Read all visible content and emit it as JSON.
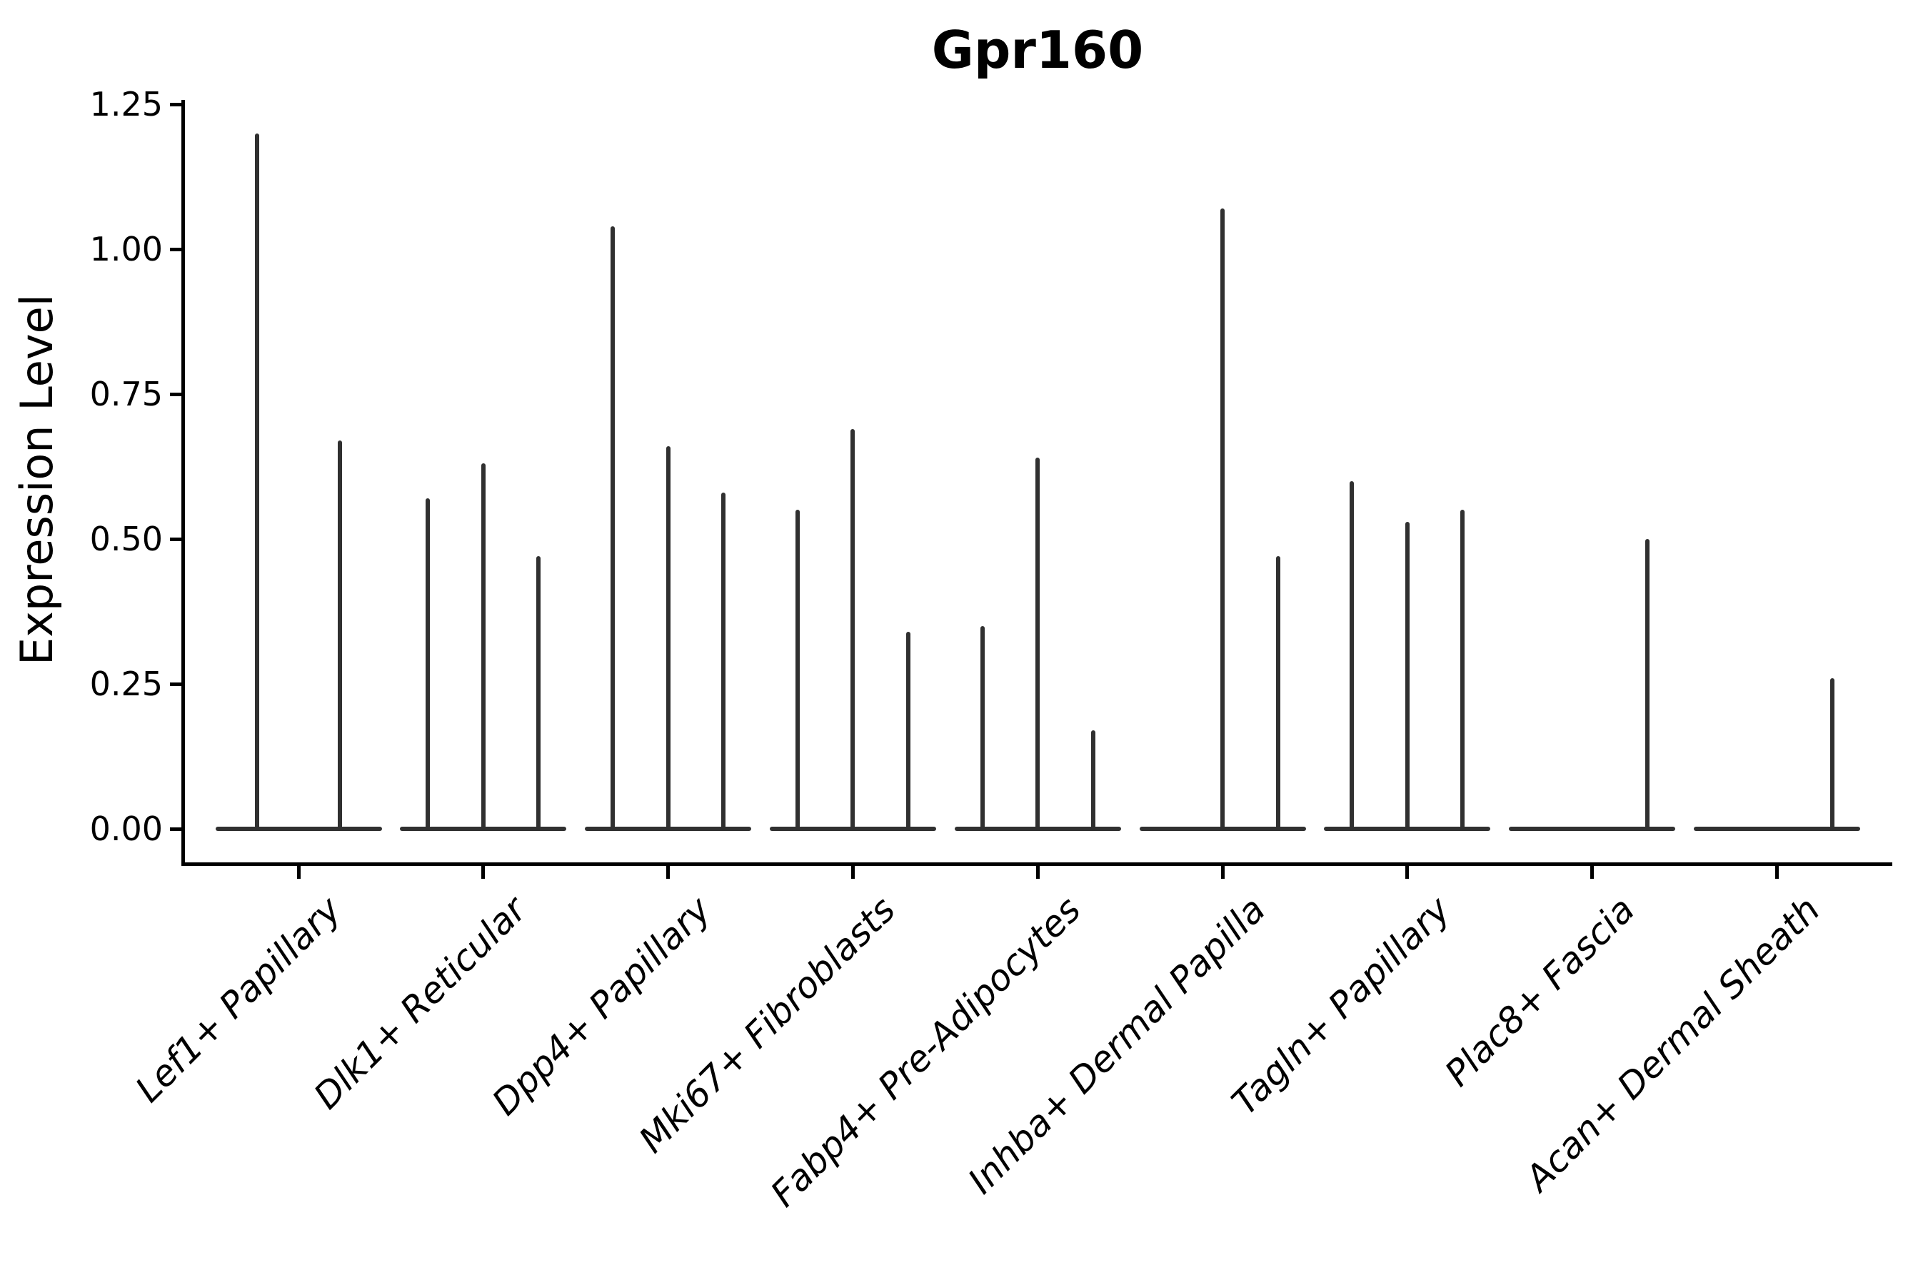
{
  "figure": {
    "title": "Gpr160",
    "y_axis": {
      "label": "Expression Level",
      "tick_values": [
        0,
        0.25,
        0.5,
        0.75,
        1.0,
        1.25
      ],
      "tick_labels": [
        "0.00",
        "0.25",
        "0.50",
        "0.75",
        "1.00",
        "1.25"
      ]
    },
    "colors": {
      "violin_line": "#303030",
      "axis": "#000000",
      "text": "#000000",
      "background": "#ffffff"
    }
  },
  "chart_data": {
    "type": "violin",
    "title": "Gpr160",
    "xlabel": "",
    "ylabel": "Expression Level",
    "ylim": [
      0,
      1.25
    ],
    "yticks": [
      0,
      0.25,
      0.5,
      0.75,
      1.0,
      1.25
    ],
    "grid": false,
    "legend_position": "none",
    "note": "Collapsed violins rendered as vertical max-expression spikes; sub-violins are dodged within each category; flat baseline segment at 0 spans each category group.",
    "categories": [
      "Lef1+ Papillary",
      "Dlk1+ Reticular",
      "Dpp4+ Papillary",
      "Mki67+ Fibroblasts",
      "Fabp4+ Pre-Adipocytes",
      "Inhba+ Dermal Papilla",
      "Tagln+ Papillary",
      "Plac8+ Fascia",
      "Acan+ Dermal Sheath"
    ],
    "violins": [
      [
        1.2,
        0.67
      ],
      [
        0.57,
        0.63,
        0.47
      ],
      [
        1.04,
        0.66,
        0.58
      ],
      [
        0.55,
        0.69,
        0.34
      ],
      [
        0.35,
        0.64,
        0.17
      ],
      [
        0.0,
        1.07,
        0.47
      ],
      [
        0.6,
        0.53,
        0.55
      ],
      [
        0.0,
        0.0,
        0.5
      ],
      [
        0.0,
        0.0,
        0.26
      ]
    ]
  }
}
